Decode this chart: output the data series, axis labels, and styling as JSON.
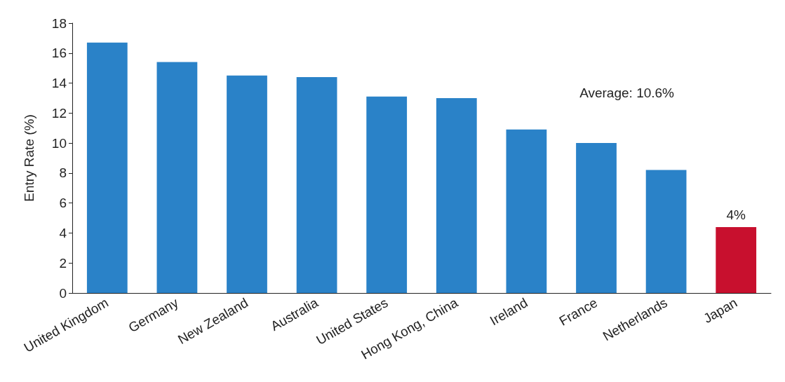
{
  "chart_data": {
    "type": "bar",
    "ylabel": "Entry Rate (%)",
    "categories": [
      "United Kingdom",
      "Germany",
      "New Zealand",
      "Australia",
      "United States",
      "Hong Kong, China",
      "Ireland",
      "France",
      "Netherlands",
      "Japan"
    ],
    "values": [
      16.7,
      15.4,
      14.5,
      14.4,
      13.1,
      13.0,
      10.9,
      10.0,
      8.2,
      4.4
    ],
    "colors": [
      "#2a82c8",
      "#2a82c8",
      "#2a82c8",
      "#2a82c8",
      "#2a82c8",
      "#2a82c8",
      "#2a82c8",
      "#2a82c8",
      "#2a82c8",
      "#c8102e"
    ],
    "ylim": [
      0,
      18
    ],
    "yticks": [
      0,
      2,
      4,
      6,
      8,
      10,
      12,
      14,
      16,
      18
    ],
    "grid": false,
    "annotations": [
      "Average: 10.6%",
      {
        "text": "4%",
        "x": "Japan",
        "y": 4.4
      }
    ]
  }
}
